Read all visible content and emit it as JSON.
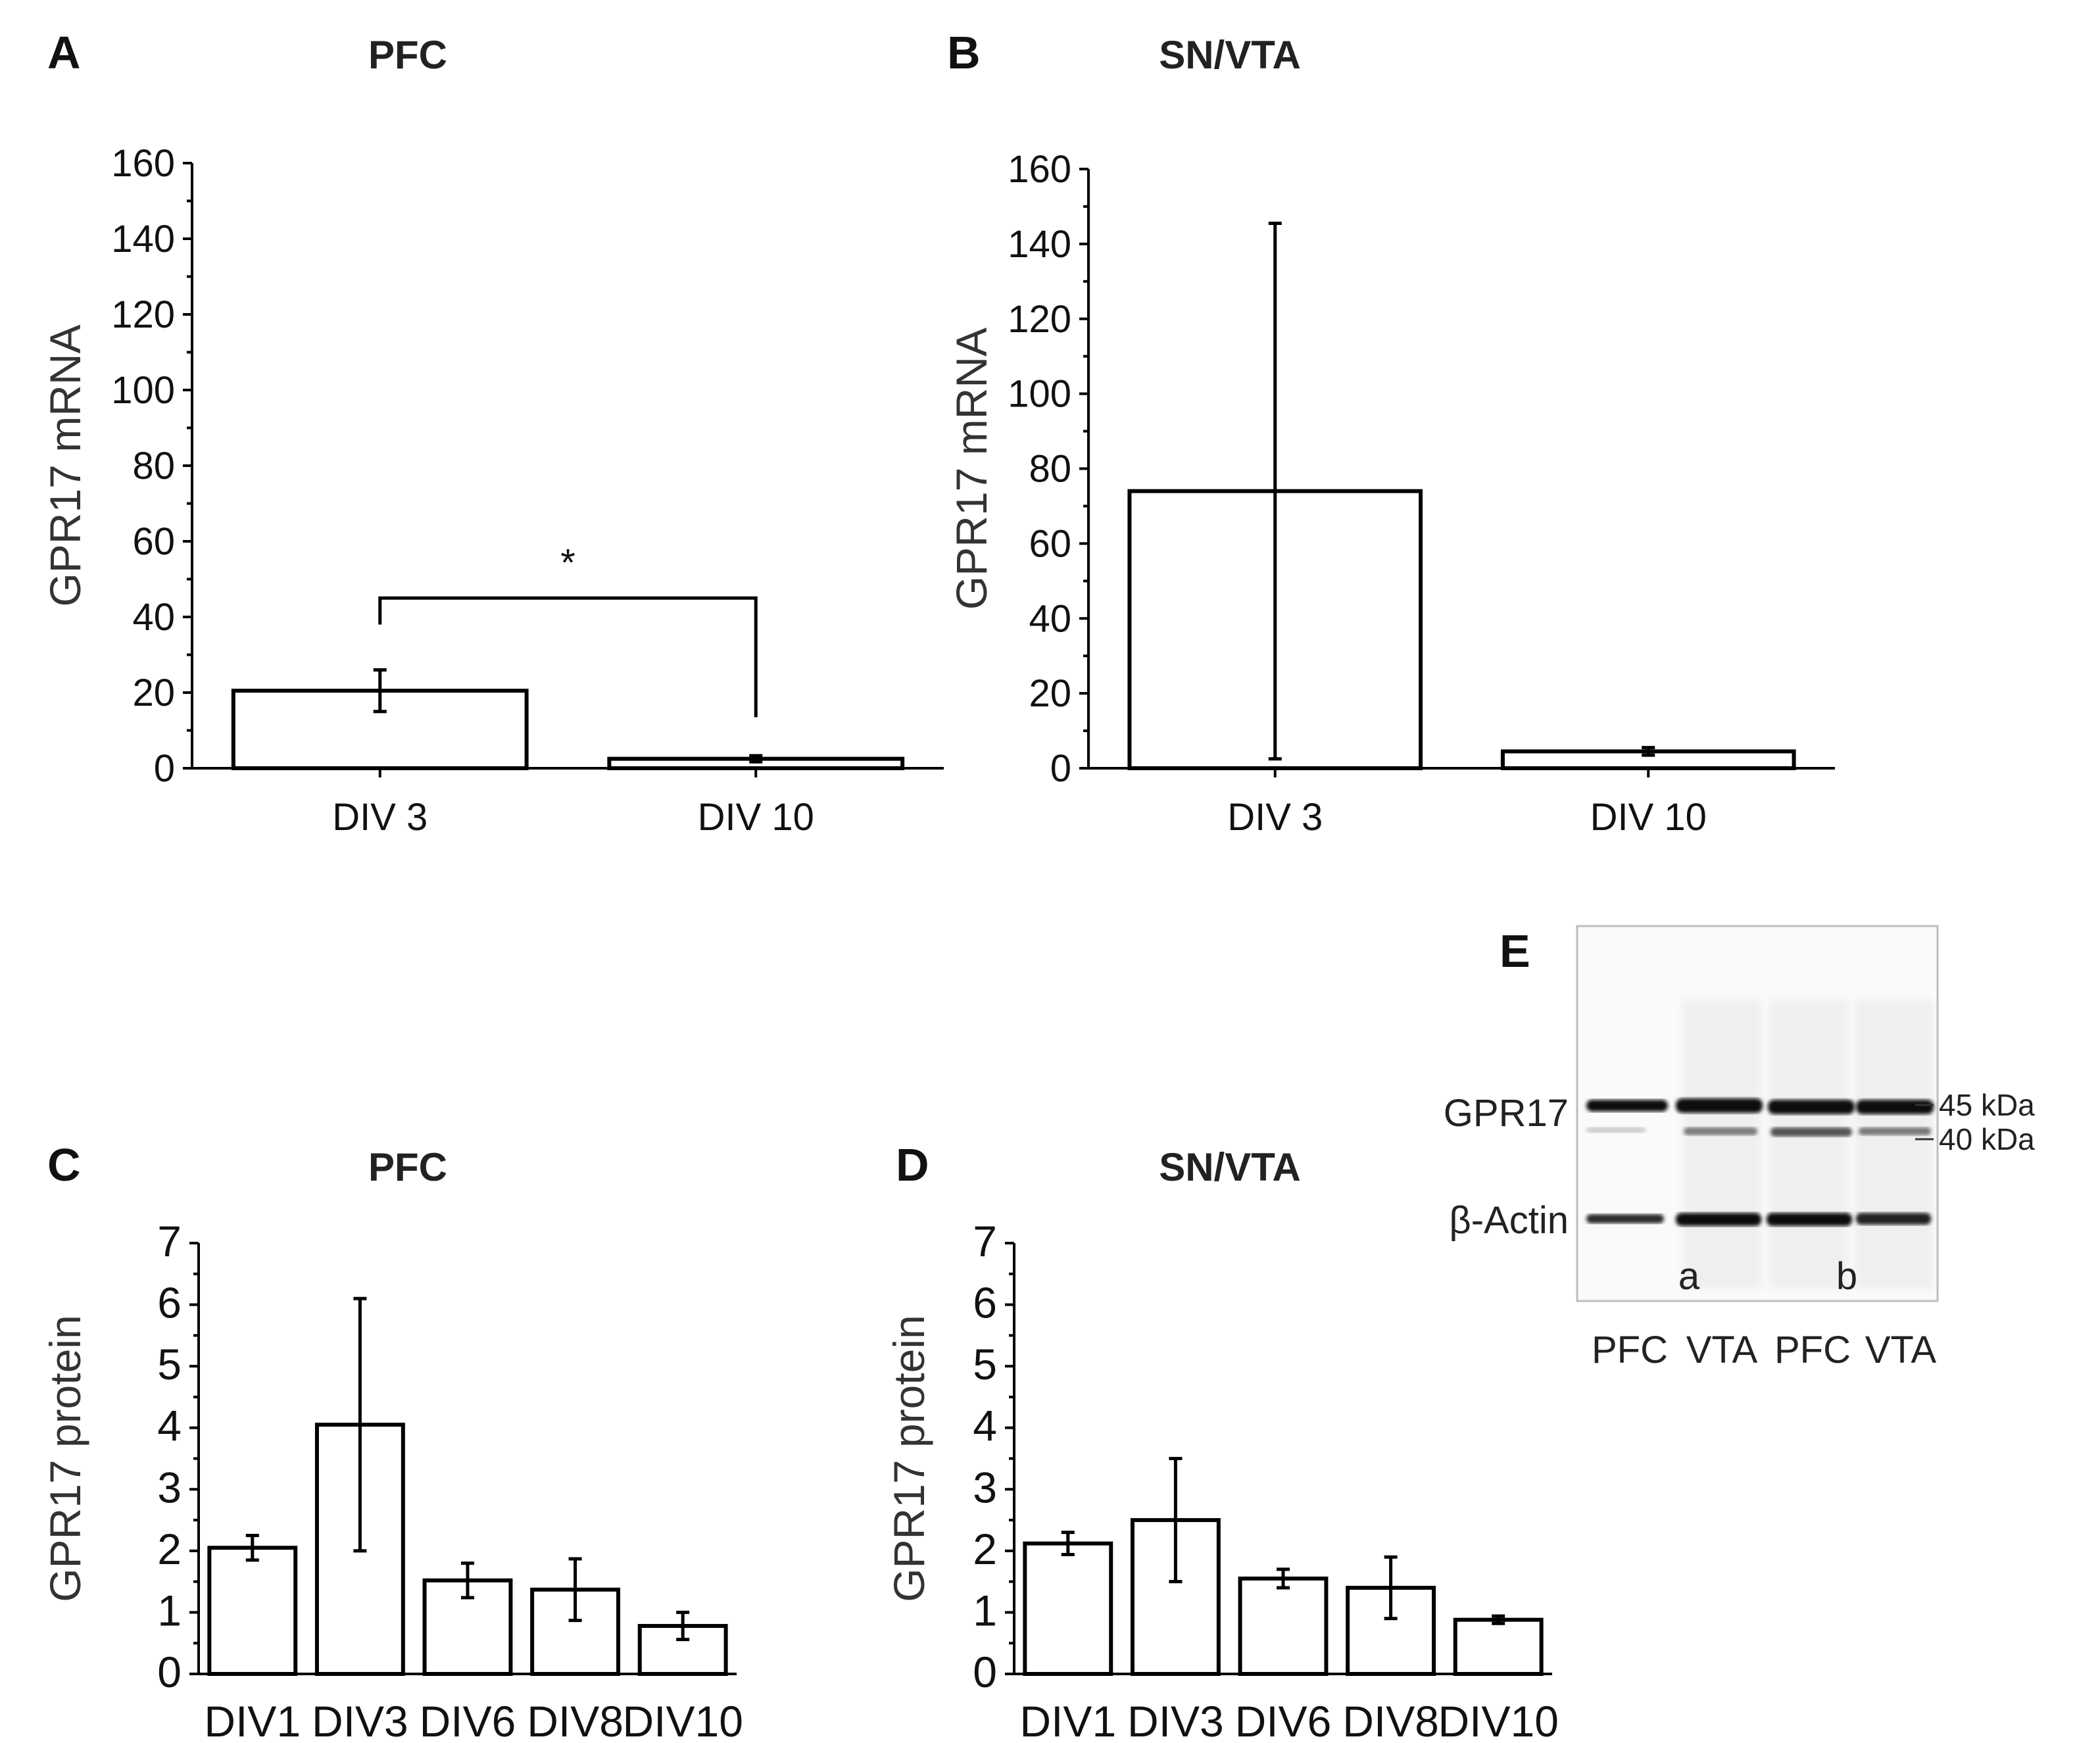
{
  "chart_data": [
    {
      "panel": "A",
      "type": "bar",
      "title": "PFC",
      "ylabel": "GPR17 mRNA",
      "xlabel": "",
      "ylim": [
        0,
        160
      ],
      "yticks": [
        0,
        20,
        40,
        60,
        80,
        100,
        120,
        140,
        160
      ],
      "categories": [
        "DIV 3",
        "DIV 10"
      ],
      "values": [
        20.5,
        2.5
      ],
      "errors": [
        5.5,
        0.8
      ],
      "significance": {
        "from": "DIV 3",
        "to": "DIV 10",
        "label": "*"
      }
    },
    {
      "panel": "B",
      "type": "bar",
      "title": "SN/VTA",
      "ylabel": "GPR17 mRNA",
      "xlabel": "",
      "ylim": [
        0,
        160
      ],
      "yticks": [
        0,
        20,
        40,
        60,
        80,
        100,
        120,
        140,
        160
      ],
      "categories": [
        "DIV 3",
        "DIV 10"
      ],
      "values": [
        74,
        4.5
      ],
      "errors": [
        71.5,
        1.0
      ]
    },
    {
      "panel": "C",
      "type": "bar",
      "title": "PFC",
      "ylabel": "GPR17 protein",
      "xlabel": "",
      "ylim": [
        0,
        7
      ],
      "yticks": [
        0,
        1,
        2,
        3,
        4,
        5,
        6,
        7
      ],
      "categories": [
        "DIV1",
        "DIV3",
        "DIV6",
        "DIV8",
        "DIV10"
      ],
      "values": [
        2.05,
        4.05,
        1.52,
        1.37,
        0.78
      ],
      "errors": [
        0.2,
        2.05,
        0.28,
        0.5,
        0.22
      ]
    },
    {
      "panel": "D",
      "type": "bar",
      "title": "SN/VTA",
      "ylabel": "GPR17 protein",
      "xlabel": "",
      "ylim": [
        0,
        7
      ],
      "yticks": [
        0,
        1,
        2,
        3,
        4,
        5,
        6,
        7
      ],
      "categories": [
        "DIV1",
        "DIV3",
        "DIV6",
        "DIV8",
        "DIV10"
      ],
      "values": [
        2.12,
        2.5,
        1.55,
        1.4,
        0.88
      ],
      "errors": [
        0.18,
        1.0,
        0.15,
        0.5,
        0.06
      ]
    }
  ],
  "blot": {
    "panel": "E",
    "row_labels": [
      "GPR17",
      "β-Actin"
    ],
    "markers": [
      "45 kDa",
      "40 kDa"
    ],
    "group_labels": [
      "a",
      "b"
    ],
    "lane_labels": [
      "PFC",
      "VTA",
      "PFC",
      "VTA"
    ]
  }
}
